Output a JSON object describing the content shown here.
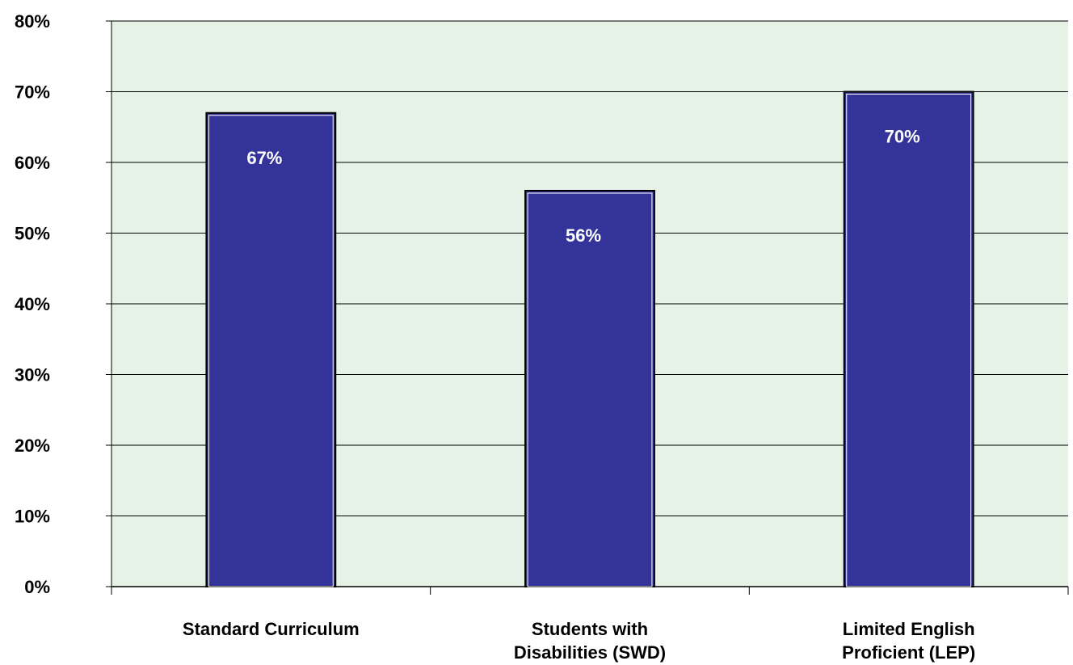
{
  "chart_data": {
    "type": "bar",
    "categories": [
      [
        "Standard Curriculum"
      ],
      [
        "Students with",
        "Disabilities (SWD)"
      ],
      [
        "Limited English",
        "Proficient (LEP)"
      ]
    ],
    "values": [
      67,
      56,
      70
    ],
    "data_labels": [
      "67%",
      "56%",
      "70%"
    ],
    "ylim": [
      0,
      80
    ],
    "yticks": [
      0,
      10,
      20,
      30,
      40,
      50,
      60,
      70,
      80
    ],
    "ytick_format": "%",
    "grid": true,
    "legend": "none",
    "colors": {
      "bar_fill": "#333399",
      "plot_background": "#e5f2e5",
      "gridline": "#000000",
      "data_label": "#ffffff"
    }
  }
}
